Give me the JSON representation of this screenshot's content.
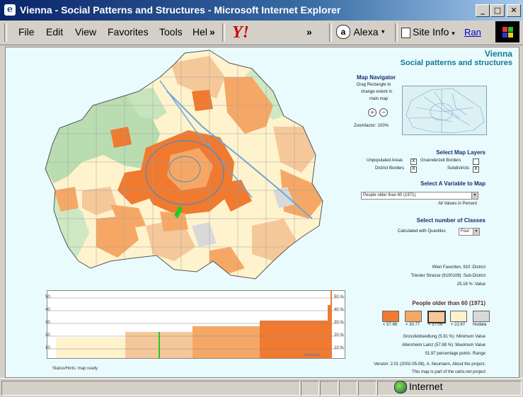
{
  "window": {
    "title": "Vienna - Social Patterns and Structures - Microsoft Internet Explorer",
    "minimize": "_",
    "maximize": "□",
    "close": "✕"
  },
  "menu": [
    "File",
    "Edit",
    "View",
    "Favorites",
    "Tools",
    "Hel"
  ],
  "toolbar": {
    "overflow1": "»",
    "yahoo": "Y!",
    "overflow2": "»",
    "alexa": "Alexa",
    "site_info": "Site Info",
    "ran": "Ran"
  },
  "page": {
    "title": "Vienna",
    "subtitle": "Social patterns and structures",
    "navigator": {
      "title": "Map Navigator",
      "hint1": "Drag Rectangle to",
      "hint2": "change extent in",
      "hint3": "main map",
      "zoom_in": "+",
      "zoom_out": "−",
      "zoomfactor": "Zoomfactor: 100%"
    },
    "layers": {
      "title": "Select Map Layers",
      "unpopulated": "Unpopulated Areas",
      "district": "District Borders",
      "gruenderzeit": "Gruenderzeit Borders",
      "subdistricts": "Subdistricts"
    },
    "variable": {
      "title": "Select A Variable to Map",
      "selected": "People older than 60 (1971)",
      "note": "All Values in Percent"
    },
    "classes": {
      "title": "Select number of Classes",
      "label": "Calculated with Quantiles",
      "selected": "Four"
    },
    "info": {
      "district": "Wien Favoriten, 910 :District",
      "subdistrict": "Triester Strasse (9100108) :Sub-District",
      "value": "25.18 % :Value"
    },
    "legend": {
      "title": "People older than 60 (1971)",
      "labels": [
        "< 57.88",
        "< 30.77",
        "< 27.09",
        "< 22.67",
        "Nodata"
      ],
      "colors": [
        "#ef7a30",
        "#f5a865",
        "#f5c89a",
        "#fff3cd",
        "#d9d9d9"
      ]
    },
    "stats": {
      "min": "Grossfeldsiedlung (5.91 %) :Minimum Value",
      "max": "Altersheim Lainz (57.88 %) :Maximum Value",
      "range": "51.97 percentage points :Range"
    },
    "footer": {
      "version": "Version: 2.01 (2002-05-08), A. Neumann, About the project.",
      "part": "This map is part of the carto.net project"
    },
    "status": "Status/Hints: map ready",
    "histogram": {
      "left_ticks": [
        "50",
        "40",
        "30",
        "20",
        "10"
      ],
      "right_ticks": [
        "50 %",
        "40 %",
        "30 %",
        "20 %",
        "10 %"
      ],
      "watermark": "Histogram"
    }
  },
  "statusbar": {
    "zone": "Internet"
  }
}
